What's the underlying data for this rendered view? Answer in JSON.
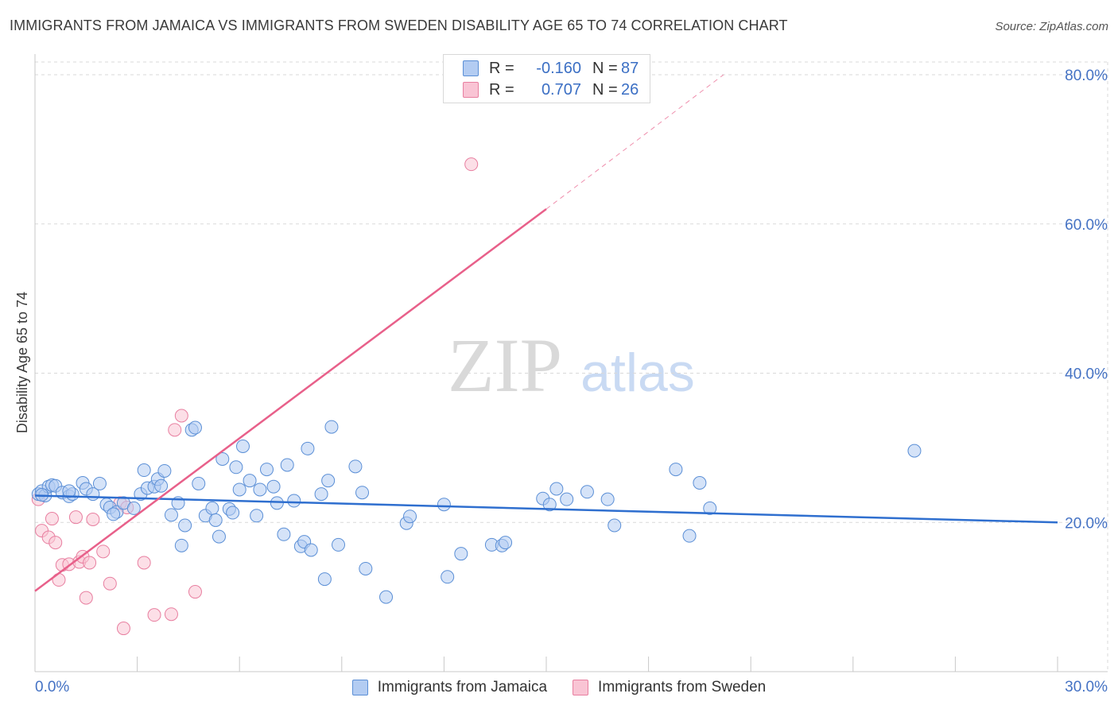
{
  "header": {
    "title": "IMMIGRANTS FROM JAMAICA VS IMMIGRANTS FROM SWEDEN DISABILITY AGE 65 TO 74 CORRELATION CHART",
    "source": "Source: ZipAtlas.com"
  },
  "legend": {
    "jamaica": {
      "r_label": "R =",
      "r_value": "-0.160",
      "n_label": "N =",
      "n_value": "87"
    },
    "sweden": {
      "r_label": "R =",
      "r_value": "0.707",
      "n_label": "N =",
      "n_value": "26"
    }
  },
  "watermark": {
    "zip": "ZIP",
    "atlas": "atlas"
  },
  "colors": {
    "jamaica_fill": "#b3ccf2",
    "jamaica_stroke": "#5b8fd6",
    "jamaica_line": "#2f6fcf",
    "sweden_fill": "#f9c4d4",
    "sweden_stroke": "#e87fa0",
    "sweden_line": "#e8608a",
    "grid": "#d9d9d9",
    "tick_label": "#4472c4"
  },
  "chart_data": {
    "type": "scatter",
    "title": "IMMIGRANTS FROM JAMAICA VS IMMIGRANTS FROM SWEDEN DISABILITY AGE 65 TO 74 CORRELATION CHART",
    "xlabel": "",
    "ylabel": "Disability Age 65 to 74",
    "xlim": [
      0,
      30
    ],
    "ylim": [
      0,
      80
    ],
    "x_tick_labels": [
      "0.0%",
      "30.0%"
    ],
    "y_ticks": [
      20,
      40,
      60,
      80
    ],
    "y_tick_labels": [
      "20.0%",
      "40.0%",
      "60.0%",
      "80.0%"
    ],
    "grid": "horizontal dashed",
    "legend_position": "top-center",
    "series": [
      {
        "name": "Immigrants from Jamaica",
        "color": "#b3ccf2",
        "trend": {
          "x": [
            0,
            30
          ],
          "y": [
            23.6,
            20.0
          ]
        },
        "points": [
          [
            0.1,
            23.8
          ],
          [
            0.2,
            24.2
          ],
          [
            0.3,
            23.6
          ],
          [
            0.4,
            24.8
          ],
          [
            0.5,
            25.0
          ],
          [
            0.6,
            24.9
          ],
          [
            0.8,
            24.0
          ],
          [
            1.0,
            23.5
          ],
          [
            1.1,
            23.8
          ],
          [
            1.4,
            25.3
          ],
          [
            1.5,
            24.5
          ],
          [
            1.7,
            23.8
          ],
          [
            1.9,
            25.2
          ],
          [
            2.1,
            22.4
          ],
          [
            2.2,
            22.0
          ],
          [
            2.4,
            21.4
          ],
          [
            2.6,
            22.6
          ],
          [
            2.9,
            21.9
          ],
          [
            3.1,
            23.8
          ],
          [
            3.2,
            27.0
          ],
          [
            3.3,
            24.6
          ],
          [
            3.5,
            24.8
          ],
          [
            3.6,
            25.8
          ],
          [
            3.8,
            26.9
          ],
          [
            4.0,
            21.0
          ],
          [
            4.2,
            22.6
          ],
          [
            4.3,
            16.9
          ],
          [
            4.4,
            19.6
          ],
          [
            4.6,
            32.4
          ],
          [
            4.7,
            32.7
          ],
          [
            4.8,
            25.2
          ],
          [
            5.0,
            20.9
          ],
          [
            5.2,
            21.9
          ],
          [
            5.3,
            20.3
          ],
          [
            5.4,
            18.1
          ],
          [
            5.5,
            28.5
          ],
          [
            5.7,
            21.8
          ],
          [
            5.8,
            21.3
          ],
          [
            5.9,
            27.4
          ],
          [
            6.0,
            24.4
          ],
          [
            6.1,
            30.2
          ],
          [
            6.3,
            25.6
          ],
          [
            6.5,
            20.9
          ],
          [
            6.6,
            24.4
          ],
          [
            6.8,
            27.1
          ],
          [
            7.0,
            24.8
          ],
          [
            7.1,
            22.6
          ],
          [
            7.3,
            18.4
          ],
          [
            7.4,
            27.7
          ],
          [
            7.6,
            22.9
          ],
          [
            7.8,
            16.8
          ],
          [
            7.9,
            17.4
          ],
          [
            8.0,
            29.9
          ],
          [
            8.1,
            16.3
          ],
          [
            8.4,
            23.8
          ],
          [
            8.5,
            12.4
          ],
          [
            8.6,
            25.6
          ],
          [
            8.7,
            32.8
          ],
          [
            8.9,
            17.0
          ],
          [
            9.4,
            27.5
          ],
          [
            9.6,
            24.0
          ],
          [
            9.7,
            13.8
          ],
          [
            10.3,
            10.0
          ],
          [
            10.9,
            19.9
          ],
          [
            11.0,
            20.8
          ],
          [
            12.0,
            22.4
          ],
          [
            12.1,
            12.7
          ],
          [
            12.5,
            15.8
          ],
          [
            13.4,
            17.0
          ],
          [
            13.7,
            16.9
          ],
          [
            13.8,
            17.3
          ],
          [
            14.9,
            23.2
          ],
          [
            15.1,
            22.4
          ],
          [
            15.3,
            24.5
          ],
          [
            15.6,
            23.1
          ],
          [
            16.2,
            24.1
          ],
          [
            16.8,
            23.1
          ],
          [
            17.0,
            19.6
          ],
          [
            18.8,
            27.1
          ],
          [
            19.2,
            18.2
          ],
          [
            19.5,
            25.3
          ],
          [
            19.8,
            21.9
          ],
          [
            25.8,
            29.6
          ],
          [
            3.7,
            24.9
          ],
          [
            1.0,
            24.2
          ],
          [
            2.3,
            21.1
          ],
          [
            0.2,
            23.7
          ]
        ]
      },
      {
        "name": "Immigrants from Sweden",
        "color": "#f9c4d4",
        "trend": {
          "x": [
            0,
            15
          ],
          "y": [
            10.8,
            62.0
          ]
        },
        "trend_dashed": {
          "x": [
            15,
            20.2
          ],
          "y": [
            62.0,
            80.0
          ]
        },
        "points": [
          [
            0.1,
            23.1
          ],
          [
            0.2,
            18.9
          ],
          [
            0.4,
            18.0
          ],
          [
            0.5,
            20.5
          ],
          [
            0.6,
            17.3
          ],
          [
            0.7,
            12.3
          ],
          [
            0.8,
            14.3
          ],
          [
            1.0,
            14.4
          ],
          [
            1.2,
            20.7
          ],
          [
            1.3,
            14.7
          ],
          [
            1.4,
            15.4
          ],
          [
            1.5,
            9.9
          ],
          [
            1.6,
            14.6
          ],
          [
            1.7,
            20.4
          ],
          [
            2.0,
            16.1
          ],
          [
            2.2,
            11.8
          ],
          [
            2.5,
            22.6
          ],
          [
            2.6,
            5.8
          ],
          [
            2.7,
            22.0
          ],
          [
            3.2,
            14.6
          ],
          [
            3.5,
            7.6
          ],
          [
            4.0,
            7.7
          ],
          [
            4.1,
            32.4
          ],
          [
            4.3,
            34.3
          ],
          [
            4.7,
            10.7
          ],
          [
            12.8,
            68.0
          ]
        ]
      }
    ]
  },
  "bottom_legend": {
    "jamaica_label": "Immigrants from Jamaica",
    "sweden_label": "Immigrants from Sweden"
  }
}
